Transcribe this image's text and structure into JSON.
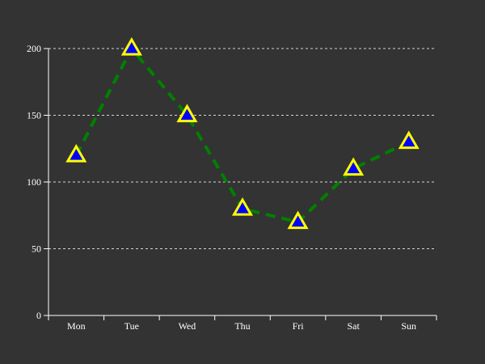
{
  "chart_data": {
    "type": "line",
    "categories": [
      "Mon",
      "Tue",
      "Wed",
      "Thu",
      "Fri",
      "Sat",
      "Sun"
    ],
    "values": [
      120,
      200,
      150,
      80,
      70,
      110,
      130
    ],
    "title": "",
    "xlabel": "",
    "ylabel": "",
    "ylim": [
      0,
      200
    ],
    "yticks": [
      0,
      50,
      100,
      150,
      200
    ],
    "grid": "horizontal dashed",
    "line_style": "dashed",
    "marker": "triangle",
    "colors": {
      "background": "#333333",
      "line": "#008000",
      "marker_fill": "#0000ff",
      "marker_stroke": "#ffff00",
      "axis": "#ffffff",
      "grid": "#ffffff",
      "text": "#ffffff"
    }
  }
}
